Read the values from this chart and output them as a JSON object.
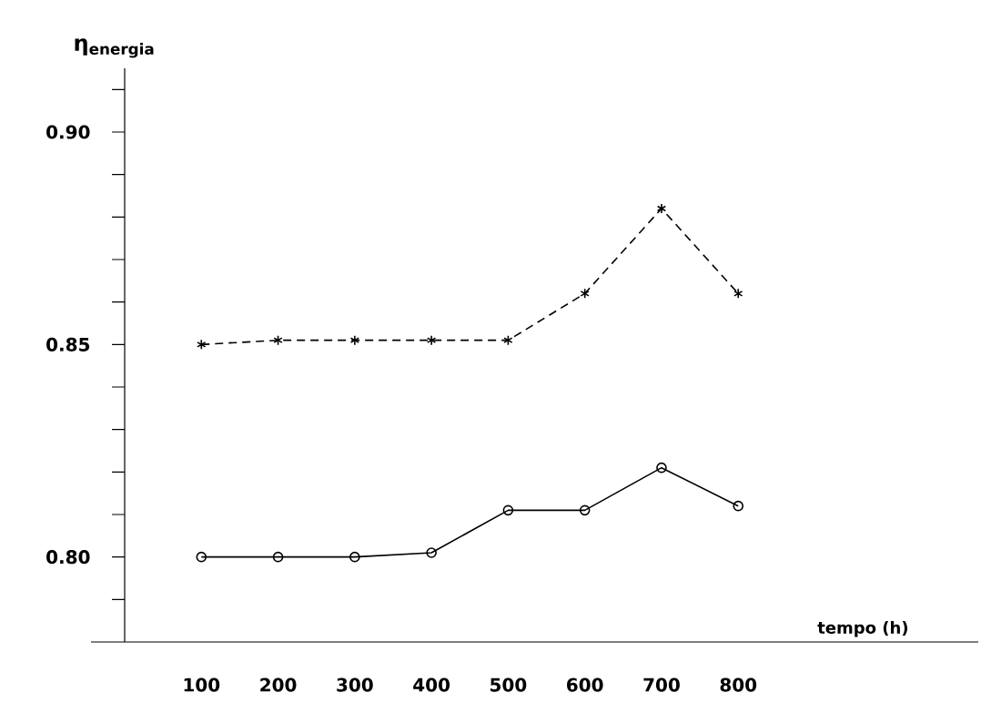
{
  "chart_data": {
    "type": "line",
    "xlabel": "tempo (h)",
    "ylabel": "η$_{energia}$",
    "x": [
      100,
      200,
      300,
      400,
      500,
      600,
      700,
      800
    ],
    "series": [
      {
        "color": "#000000",
        "marker": "cross",
        "line_style": "dashed",
        "values": [
          0.85,
          0.851,
          0.851,
          0.851,
          0.851,
          0.862,
          0.882,
          0.862
        ]
      },
      {
        "color": "#000000",
        "marker": "circle",
        "line_style": "solid",
        "values": [
          0.8,
          0.8,
          0.8,
          0.801,
          0.811,
          0.811,
          0.821,
          0.812
        ]
      }
    ],
    "xlim": [
      0,
      1113
    ],
    "ylim": [
      0.78,
      0.915
    ],
    "xticks": [
      100,
      200,
      300,
      400,
      500,
      600,
      700,
      800
    ],
    "yticks": [
      {
        "value": 0.79,
        "label": null
      },
      {
        "value": 0.8,
        "label": "0.80"
      },
      {
        "value": 0.81,
        "label": null
      },
      {
        "value": 0.82,
        "label": null
      },
      {
        "value": 0.83,
        "label": null
      },
      {
        "value": 0.84,
        "label": null
      },
      {
        "value": 0.85,
        "label": "0.85"
      },
      {
        "value": 0.86,
        "label": null
      },
      {
        "value": 0.87,
        "label": null
      },
      {
        "value": 0.88,
        "label": null
      },
      {
        "value": 0.89,
        "label": null
      },
      {
        "value": 0.9,
        "label": "0.90"
      },
      {
        "value": 0.91,
        "label": null
      }
    ],
    "grid": false
  }
}
